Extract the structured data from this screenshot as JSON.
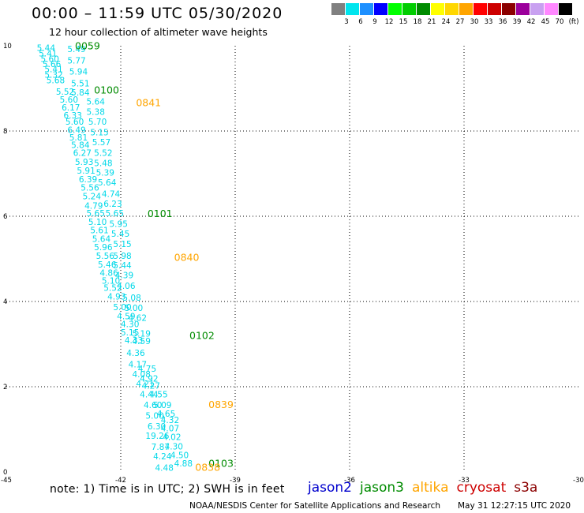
{
  "header": {
    "title": "00:00 – 11:59 UTC 05/30/2020",
    "subtitle": "12 hour collection of altimeter wave heights"
  },
  "colorbar": {
    "ticks": [
      "3",
      "6",
      "9",
      "12",
      "15",
      "18",
      "21",
      "24",
      "27",
      "30",
      "33",
      "36",
      "39",
      "42",
      "45",
      "70",
      "(ft)"
    ],
    "colors": [
      "#808080",
      "#00e5ee",
      "#1e90ff",
      "#0000ff",
      "#00ff00",
      "#00cd00",
      "#008b00",
      "#ffff00",
      "#ffd700",
      "#ffa500",
      "#ff0000",
      "#cd0000",
      "#8b0000",
      "#9b009b",
      "#c8a0f0",
      "#ff88ff",
      "#000000"
    ]
  },
  "footer": {
    "note": "note: 1) Time is in UTC; 2) SWH is in feet",
    "credit": "NOAA/NESDIS Center for Satellite Applications and Research",
    "timestamp": "May 31 12:27:15 UTC 2020",
    "legend": [
      {
        "label": "jason2",
        "color": "#0000cd"
      },
      {
        "label": "jason3",
        "color": "#008b00"
      },
      {
        "label": "altika",
        "color": "#ffa500"
      },
      {
        "label": "cryosat",
        "color": "#cd0000"
      },
      {
        "label": "s3a",
        "color": "#8b0000"
      }
    ]
  },
  "chart_data": {
    "type": "scatter",
    "xlim": [
      -45,
      -30
    ],
    "ylim": [
      0,
      10
    ],
    "x_ticks": [
      "-45",
      "-42",
      "-39",
      "-36",
      "-33",
      "-30"
    ],
    "y_ticks": [
      "0",
      "2",
      "4",
      "6",
      "8",
      "10"
    ],
    "grid": true,
    "swh_color": "#00d8e8",
    "swh_labels": [
      {
        "lon": -44.2,
        "lat": 9.88,
        "text": "5.44"
      },
      {
        "lon": -43.4,
        "lat": 9.85,
        "text": "5.49"
      },
      {
        "lon": -44.15,
        "lat": 9.75,
        "text": "5.41"
      },
      {
        "lon": -44.1,
        "lat": 9.62,
        "text": "5.60"
      },
      {
        "lon": -43.4,
        "lat": 9.58,
        "text": "5.77"
      },
      {
        "lon": -44.05,
        "lat": 9.5,
        "text": "5.66"
      },
      {
        "lon": -44.0,
        "lat": 9.38,
        "text": "5.41"
      },
      {
        "lon": -43.35,
        "lat": 9.32,
        "text": "5.94"
      },
      {
        "lon": -44.0,
        "lat": 9.25,
        "text": "5.32"
      },
      {
        "lon": -43.95,
        "lat": 9.12,
        "text": "5.68"
      },
      {
        "lon": -43.3,
        "lat": 9.05,
        "text": "5.51"
      },
      {
        "lon": -43.7,
        "lat": 8.85,
        "text": "5.52"
      },
      {
        "lon": -43.3,
        "lat": 8.83,
        "text": "5.84"
      },
      {
        "lon": -43.6,
        "lat": 8.67,
        "text": "5.60"
      },
      {
        "lon": -42.9,
        "lat": 8.62,
        "text": "5.64"
      },
      {
        "lon": -43.55,
        "lat": 8.48,
        "text": "6.17"
      },
      {
        "lon": -42.9,
        "lat": 8.38,
        "text": "5.38"
      },
      {
        "lon": -43.5,
        "lat": 8.3,
        "text": "6.33"
      },
      {
        "lon": -42.85,
        "lat": 8.15,
        "text": "5.70"
      },
      {
        "lon": -43.45,
        "lat": 8.15,
        "text": "5.60"
      },
      {
        "lon": -43.4,
        "lat": 7.95,
        "text": "6.49"
      },
      {
        "lon": -42.8,
        "lat": 7.9,
        "text": "5.15"
      },
      {
        "lon": -43.35,
        "lat": 7.78,
        "text": "5.81"
      },
      {
        "lon": -42.75,
        "lat": 7.67,
        "text": "5.57"
      },
      {
        "lon": -43.3,
        "lat": 7.6,
        "text": "5.84"
      },
      {
        "lon": -42.7,
        "lat": 7.42,
        "text": "5.52"
      },
      {
        "lon": -43.25,
        "lat": 7.42,
        "text": "6.27"
      },
      {
        "lon": -42.7,
        "lat": 7.18,
        "text": "5.48"
      },
      {
        "lon": -43.2,
        "lat": 7.2,
        "text": "5.93"
      },
      {
        "lon": -43.15,
        "lat": 7.0,
        "text": "5.91"
      },
      {
        "lon": -42.65,
        "lat": 6.95,
        "text": "5.39"
      },
      {
        "lon": -43.1,
        "lat": 6.8,
        "text": "6.39"
      },
      {
        "lon": -42.6,
        "lat": 6.72,
        "text": "5.64"
      },
      {
        "lon": -43.05,
        "lat": 6.6,
        "text": "5.56"
      },
      {
        "lon": -42.5,
        "lat": 6.45,
        "text": "4.74"
      },
      {
        "lon": -43.0,
        "lat": 6.4,
        "text": "5.24"
      },
      {
        "lon": -42.45,
        "lat": 6.22,
        "text": "6.23"
      },
      {
        "lon": -42.95,
        "lat": 6.18,
        "text": "4.79"
      },
      {
        "lon": -42.9,
        "lat": 6.0,
        "text": "5.65"
      },
      {
        "lon": -42.4,
        "lat": 6.0,
        "text": "5.65"
      },
      {
        "lon": -42.85,
        "lat": 5.8,
        "text": "5.10"
      },
      {
        "lon": -42.3,
        "lat": 5.75,
        "text": "5.95"
      },
      {
        "lon": -42.8,
        "lat": 5.6,
        "text": "5.61"
      },
      {
        "lon": -42.25,
        "lat": 5.52,
        "text": "5.45"
      },
      {
        "lon": -42.75,
        "lat": 5.4,
        "text": "5.64"
      },
      {
        "lon": -42.2,
        "lat": 5.28,
        "text": "5.15"
      },
      {
        "lon": -42.7,
        "lat": 5.2,
        "text": "5.96"
      },
      {
        "lon": -42.2,
        "lat": 5.0,
        "text": "5.98"
      },
      {
        "lon": -42.65,
        "lat": 5.0,
        "text": "5.56"
      },
      {
        "lon": -42.6,
        "lat": 4.8,
        "text": "5.46"
      },
      {
        "lon": -42.2,
        "lat": 4.78,
        "text": "5.44"
      },
      {
        "lon": -42.55,
        "lat": 4.6,
        "text": "4.86"
      },
      {
        "lon": -42.15,
        "lat": 4.55,
        "text": "4.39"
      },
      {
        "lon": -42.5,
        "lat": 4.42,
        "text": "5.10"
      },
      {
        "lon": -42.1,
        "lat": 4.3,
        "text": "4.06"
      },
      {
        "lon": -42.45,
        "lat": 4.25,
        "text": "5.52"
      },
      {
        "lon": -42.35,
        "lat": 4.05,
        "text": "4.93"
      },
      {
        "lon": -41.95,
        "lat": 4.02,
        "text": "5.08"
      },
      {
        "lon": -42.2,
        "lat": 3.8,
        "text": "5.00"
      },
      {
        "lon": -41.9,
        "lat": 3.78,
        "text": "5.00"
      },
      {
        "lon": -42.1,
        "lat": 3.58,
        "text": "4.59"
      },
      {
        "lon": -41.8,
        "lat": 3.55,
        "text": "4.62"
      },
      {
        "lon": -42.0,
        "lat": 3.4,
        "text": "4.30"
      },
      {
        "lon": -42.0,
        "lat": 3.2,
        "text": "5.15"
      },
      {
        "lon": -41.7,
        "lat": 3.18,
        "text": "5.19"
      },
      {
        "lon": -41.9,
        "lat": 3.02,
        "text": "4.33"
      },
      {
        "lon": -41.7,
        "lat": 3.0,
        "text": "4.59"
      },
      {
        "lon": -41.85,
        "lat": 2.72,
        "text": "4.36"
      },
      {
        "lon": -41.8,
        "lat": 2.45,
        "text": "4.17"
      },
      {
        "lon": -41.55,
        "lat": 2.35,
        "text": "4.75"
      },
      {
        "lon": -41.7,
        "lat": 2.22,
        "text": "4.08"
      },
      {
        "lon": -41.5,
        "lat": 2.12,
        "text": "4.92"
      },
      {
        "lon": -41.6,
        "lat": 2.0,
        "text": "4.21"
      },
      {
        "lon": -41.45,
        "lat": 1.95,
        "text": "4.27"
      },
      {
        "lon": -41.5,
        "lat": 1.75,
        "text": "4.44"
      },
      {
        "lon": -41.25,
        "lat": 1.75,
        "text": "4.55"
      },
      {
        "lon": -41.4,
        "lat": 1.5,
        "text": "4.60"
      },
      {
        "lon": -41.15,
        "lat": 1.5,
        "text": "5.09"
      },
      {
        "lon": -41.05,
        "lat": 1.3,
        "text": "4.65"
      },
      {
        "lon": -41.35,
        "lat": 1.25,
        "text": "5.00"
      },
      {
        "lon": -40.95,
        "lat": 1.15,
        "text": "4.32"
      },
      {
        "lon": -41.3,
        "lat": 1.0,
        "text": "6.30"
      },
      {
        "lon": -40.95,
        "lat": 0.95,
        "text": "4.07"
      },
      {
        "lon": -41.35,
        "lat": 0.78,
        "text": "19.26"
      },
      {
        "lon": -40.9,
        "lat": 0.75,
        "text": "4.02"
      },
      {
        "lon": -41.2,
        "lat": 0.52,
        "text": "7.87"
      },
      {
        "lon": -40.85,
        "lat": 0.53,
        "text": "4.30"
      },
      {
        "lon": -41.15,
        "lat": 0.3,
        "text": "4.24"
      },
      {
        "lon": -40.7,
        "lat": 0.32,
        "text": "4.50"
      },
      {
        "lon": -40.6,
        "lat": 0.13,
        "text": "4.88"
      },
      {
        "lon": -41.1,
        "lat": 0.03,
        "text": "4.48"
      }
    ],
    "time_labels": [
      {
        "lon": -43.2,
        "lat": 9.92,
        "text": "0059",
        "color": "#008b00"
      },
      {
        "lon": -42.7,
        "lat": 8.88,
        "text": "0100",
        "color": "#008b00"
      },
      {
        "lon": -41.6,
        "lat": 8.58,
        "text": "0841",
        "color": "#ffa500"
      },
      {
        "lon": -41.3,
        "lat": 5.98,
        "text": "0101",
        "color": "#008b00"
      },
      {
        "lon": -40.6,
        "lat": 4.95,
        "text": "0840",
        "color": "#ffa500"
      },
      {
        "lon": -40.2,
        "lat": 3.12,
        "text": "0102",
        "color": "#008b00"
      },
      {
        "lon": -39.7,
        "lat": 1.5,
        "text": "0839",
        "color": "#ffa500"
      },
      {
        "lon": -39.7,
        "lat": 0.12,
        "text": "0103",
        "color": "#008b00"
      },
      {
        "lon": -40.05,
        "lat": 0.03,
        "text": "0838",
        "color": "#ffa500"
      }
    ]
  }
}
